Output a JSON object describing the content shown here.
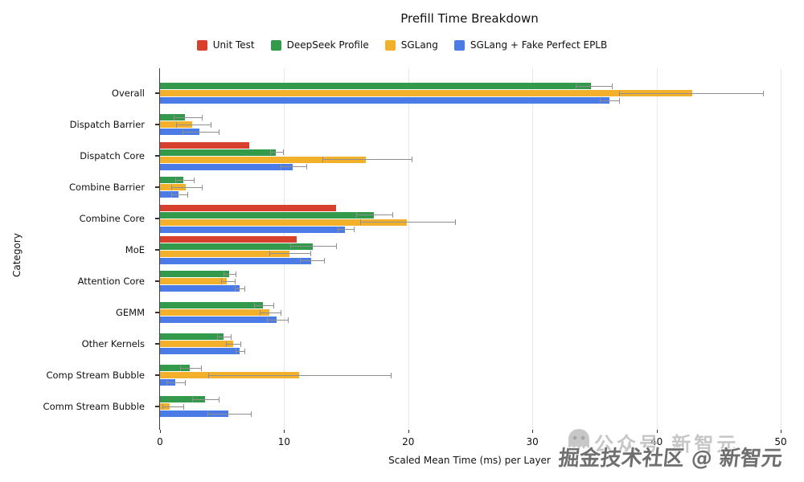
{
  "title": "Prefill Time Breakdown",
  "axes": {
    "x_label": "Scaled Mean Time (ms) per Layer",
    "y_label": "Category"
  },
  "watermark": {
    "logo": "ghost-face-icon",
    "back_text": "公众号 新智元",
    "front_text": "掘金技术社区 @ 新智元"
  },
  "chart_data": {
    "type": "bar",
    "orientation": "horizontal",
    "title": "Prefill Time Breakdown",
    "xlabel": "Scaled Mean Time (ms) per Layer",
    "ylabel": "Category",
    "xlim": [
      0,
      50
    ],
    "x_ticks": [
      0,
      10,
      20,
      30,
      40,
      50
    ],
    "grid": true,
    "legend_position": "top-center",
    "error_bars": true,
    "categories": [
      "Overall",
      "Dispatch Barrier",
      "Dispatch Core",
      "Combine Barrier",
      "Combine Core",
      "MoE",
      "Attention Core",
      "GEMM",
      "Other Kernels",
      "Comp Stream Bubble",
      "Comm Stream Bubble"
    ],
    "series": [
      {
        "name": "Unit Test",
        "color": "#d8402e",
        "values": [
          null,
          null,
          7.2,
          null,
          14.2,
          11.0,
          null,
          null,
          null,
          null,
          null
        ],
        "errors": [
          null,
          null,
          null,
          null,
          null,
          null,
          null,
          null,
          null,
          null,
          null
        ]
      },
      {
        "name": "DeepSeek Profile",
        "color": "#339a4b",
        "values": [
          34.7,
          2.0,
          9.3,
          1.9,
          17.2,
          12.3,
          5.6,
          8.3,
          5.1,
          2.4,
          3.6
        ],
        "errors": [
          [
            33.5,
            36.4
          ],
          [
            1.1,
            3.4
          ],
          [
            8.9,
            9.9
          ],
          [
            1.2,
            2.7
          ],
          [
            15.8,
            18.7
          ],
          [
            10.5,
            14.2
          ],
          [
            5.1,
            6.1
          ],
          [
            7.6,
            9.1
          ],
          [
            4.6,
            5.7
          ],
          [
            1.6,
            3.3
          ],
          [
            2.6,
            4.7
          ]
        ]
      },
      {
        "name": "SGLang",
        "color": "#f3b02a",
        "values": [
          42.9,
          2.6,
          16.6,
          2.1,
          19.9,
          10.4,
          5.4,
          8.8,
          5.9,
          11.2,
          0.8
        ],
        "errors": [
          [
            37.0,
            48.6
          ],
          [
            1.3,
            4.1
          ],
          [
            13.1,
            20.3
          ],
          [
            0.9,
            3.4
          ],
          [
            16.1,
            23.8
          ],
          [
            8.8,
            12.1
          ],
          [
            4.9,
            6.0
          ],
          [
            8.0,
            9.7
          ],
          [
            5.3,
            6.5
          ],
          [
            3.9,
            18.6
          ],
          [
            0.2,
            1.9
          ]
        ]
      },
      {
        "name": "SGLang + Fake Perfect EPLB",
        "color": "#4b7be6",
        "values": [
          36.2,
          3.2,
          10.7,
          1.5,
          14.9,
          12.2,
          6.4,
          9.4,
          6.4,
          1.2,
          5.5
        ],
        "errors": [
          [
            35.4,
            37.0
          ],
          [
            1.8,
            4.7
          ],
          [
            9.7,
            11.8
          ],
          [
            0.9,
            2.2
          ],
          [
            14.3,
            15.6
          ],
          [
            11.3,
            13.2
          ],
          [
            6.0,
            6.8
          ],
          [
            8.6,
            10.3
          ],
          [
            6.1,
            6.8
          ],
          [
            0.5,
            2.0
          ],
          [
            3.8,
            7.3
          ]
        ]
      }
    ]
  }
}
